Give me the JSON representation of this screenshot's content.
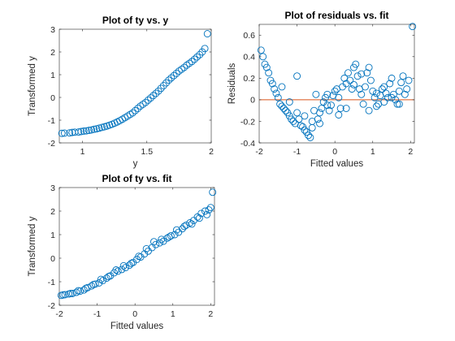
{
  "colors": {
    "marker": "#0072BD",
    "reference_line": "#D95319",
    "axis": "#262626"
  },
  "chart_data": [
    {
      "type": "scatter",
      "title": "Plot of ty vs. y",
      "xlabel": "y",
      "ylabel": "Transformed y",
      "xlim": [
        0.82,
        2.0
      ],
      "ylim": [
        -2,
        3
      ],
      "xticks": [
        1,
        1.5,
        2
      ],
      "xtick_labels": [
        "1",
        "1.5",
        "2"
      ],
      "yticks": [
        -2,
        -1,
        0,
        1,
        2,
        3
      ],
      "ytick_labels": [
        "-2",
        "-1",
        "0",
        "1",
        "2",
        "3"
      ],
      "grid": false,
      "legend": "none",
      "series": [
        {
          "x": [
            0.84,
            0.86,
            0.9,
            0.92,
            0.94,
            0.97,
            0.99,
            1.01,
            1.03,
            1.05,
            1.07,
            1.09,
            1.11,
            1.13,
            1.15,
            1.17,
            1.19,
            1.21,
            1.23,
            1.25,
            1.27,
            1.29,
            1.31,
            1.33,
            1.35,
            1.37,
            1.39,
            1.41,
            1.43,
            1.45,
            1.47,
            1.49,
            1.51,
            1.53,
            1.55,
            1.57,
            1.59,
            1.61,
            1.63,
            1.65,
            1.67,
            1.69,
            1.71,
            1.73,
            1.75,
            1.77,
            1.79,
            1.81,
            1.83,
            1.85,
            1.87,
            1.89,
            1.91,
            1.93,
            1.95,
            1.97
          ],
          "y": [
            -1.58,
            -1.57,
            -1.56,
            -1.54,
            -1.53,
            -1.52,
            -1.5,
            -1.48,
            -1.47,
            -1.45,
            -1.43,
            -1.4,
            -1.38,
            -1.35,
            -1.32,
            -1.29,
            -1.26,
            -1.22,
            -1.18,
            -1.13,
            -1.08,
            -1.02,
            -0.96,
            -0.89,
            -0.82,
            -0.75,
            -0.68,
            -0.58,
            -0.48,
            -0.38,
            -0.3,
            -0.22,
            -0.12,
            -0.02,
            0.08,
            0.18,
            0.28,
            0.4,
            0.52,
            0.64,
            0.76,
            0.86,
            0.96,
            1.06,
            1.16,
            1.24,
            1.32,
            1.42,
            1.5,
            1.58,
            1.68,
            1.78,
            1.88,
            2.0,
            2.15,
            2.8
          ]
        }
      ]
    },
    {
      "type": "scatter",
      "title": "Plot of residuals vs. fit",
      "xlabel": "Fitted values",
      "ylabel": "Residuals",
      "xlim": [
        -2,
        2.1
      ],
      "ylim": [
        -0.4,
        0.7
      ],
      "xticks": [
        -2,
        -1,
        0,
        1,
        2
      ],
      "xtick_labels": [
        "-2",
        "-1",
        "0",
        "1",
        "2"
      ],
      "yticks": [
        -0.4,
        -0.2,
        0,
        0.2,
        0.4,
        0.6
      ],
      "ytick_labels": [
        "-0.4",
        "-0.2",
        "0",
        "0.2",
        "0.4",
        "0.6"
      ],
      "grid": false,
      "legend": "none",
      "reference_line": 0,
      "series": [
        {
          "x": [
            -1.95,
            -1.9,
            -1.85,
            -1.8,
            -1.75,
            -1.7,
            -1.65,
            -1.6,
            -1.55,
            -1.5,
            -1.45,
            -1.4,
            -1.35,
            -1.3,
            -1.25,
            -1.2,
            -1.15,
            -1.1,
            -1.05,
            -1.0,
            -0.95,
            -0.9,
            -0.85,
            -0.8,
            -0.75,
            -0.7,
            -0.65,
            -0.6,
            -0.55,
            -0.5,
            -0.45,
            -0.4,
            -0.35,
            -0.3,
            -0.25,
            -0.2,
            -0.15,
            -0.1,
            -0.05,
            0.0,
            0.05,
            0.1,
            0.15,
            0.2,
            0.25,
            0.3,
            0.35,
            0.4,
            0.45,
            0.5,
            0.55,
            0.6,
            0.65,
            0.7,
            0.75,
            0.8,
            0.85,
            0.9,
            0.95,
            1.0,
            1.05,
            1.1,
            1.15,
            1.2,
            1.25,
            1.3,
            1.35,
            1.4,
            1.45,
            1.5,
            1.55,
            1.6,
            1.65,
            1.7,
            1.75,
            1.8,
            1.85,
            1.9,
            1.95,
            2.05,
            -1.4,
            -1.2,
            -1.0,
            -0.8,
            -0.6,
            -0.4,
            -0.2,
            0.1,
            0.3,
            0.5,
            0.7,
            0.9,
            1.1,
            1.3,
            1.5,
            1.7
          ],
          "y": [
            0.46,
            0.4,
            0.33,
            0.3,
            0.25,
            0.18,
            0.15,
            0.1,
            0.06,
            0.02,
            -0.04,
            -0.06,
            -0.08,
            -0.1,
            -0.12,
            -0.15,
            -0.18,
            -0.2,
            -0.22,
            -0.12,
            -0.18,
            -0.24,
            -0.25,
            -0.28,
            -0.3,
            -0.33,
            -0.35,
            -0.2,
            -0.1,
            0.05,
            -0.18,
            -0.12,
            -0.08,
            -0.02,
            0.02,
            0.05,
            -0.1,
            -0.05,
            0.04,
            0.08,
            0.1,
            0.02,
            -0.08,
            0.12,
            0.2,
            0.15,
            0.25,
            0.18,
            0.1,
            0.3,
            0.33,
            0.22,
            0.1,
            0.05,
            -0.04,
            0.12,
            0.25,
            0.3,
            0.18,
            0.08,
            0.02,
            -0.06,
            -0.04,
            0.04,
            0.1,
            0.12,
            0.06,
            0.02,
            0.15,
            0.2,
            0.05,
            0.0,
            -0.04,
            0.08,
            0.16,
            0.22,
            0.05,
            0.1,
            0.18,
            0.68,
            0.12,
            -0.02,
            0.22,
            -0.15,
            -0.26,
            -0.22,
            -0.05,
            -0.14,
            -0.08,
            0.14,
            0.24,
            -0.1,
            0.06,
            -0.02,
            0.02,
            -0.04
          ]
        }
      ]
    },
    {
      "type": "scatter",
      "title": "Plot of ty vs. fit",
      "xlabel": "Fitted values",
      "ylabel": "Transformed y",
      "xlim": [
        -2,
        2.1
      ],
      "ylim": [
        -2,
        3
      ],
      "xticks": [
        -2,
        -1,
        0,
        1,
        2
      ],
      "xtick_labels": [
        "-2",
        "-1",
        "0",
        "1",
        "2"
      ],
      "yticks": [
        -2,
        -1,
        0,
        1,
        2,
        3
      ],
      "ytick_labels": [
        "-2",
        "-1",
        "0",
        "1",
        "2",
        "3"
      ],
      "grid": false,
      "legend": "none",
      "series": [
        {
          "x": [
            -1.95,
            -1.85,
            -1.75,
            -1.65,
            -1.55,
            -1.45,
            -1.35,
            -1.25,
            -1.15,
            -1.05,
            -0.95,
            -0.85,
            -0.75,
            -0.65,
            -0.55,
            -0.45,
            -0.35,
            -0.25,
            -0.15,
            -0.05,
            0.05,
            0.15,
            0.25,
            0.35,
            0.45,
            0.55,
            0.65,
            0.75,
            0.85,
            0.95,
            1.05,
            1.15,
            1.25,
            1.35,
            1.45,
            1.55,
            1.65,
            1.75,
            1.85,
            1.95,
            2.0,
            2.05,
            -1.9,
            -1.7,
            -1.5,
            -1.3,
            -1.1,
            -0.9,
            -0.7,
            -0.5,
            -0.3,
            -0.1,
            0.1,
            0.3,
            0.5,
            0.7,
            0.9,
            1.1,
            1.3,
            1.5,
            1.7,
            1.9
          ],
          "y": [
            -1.58,
            -1.55,
            -1.52,
            -1.5,
            -1.45,
            -1.4,
            -1.35,
            -1.25,
            -1.18,
            -1.1,
            -1.05,
            -0.95,
            -0.85,
            -0.75,
            -0.62,
            -0.55,
            -0.48,
            -0.4,
            -0.3,
            -0.18,
            -0.05,
            0.05,
            0.18,
            0.3,
            0.45,
            0.58,
            0.65,
            0.72,
            0.85,
            0.95,
            1.0,
            1.1,
            1.25,
            1.4,
            1.5,
            1.6,
            1.75,
            1.9,
            2.0,
            2.05,
            2.15,
            2.8,
            -1.56,
            -1.5,
            -1.38,
            -1.28,
            -1.12,
            -0.9,
            -0.78,
            -0.5,
            -0.32,
            -0.22,
            0.08,
            0.4,
            0.7,
            0.8,
            0.9,
            1.2,
            1.35,
            1.45,
            1.7,
            1.85
          ]
        }
      ]
    }
  ]
}
